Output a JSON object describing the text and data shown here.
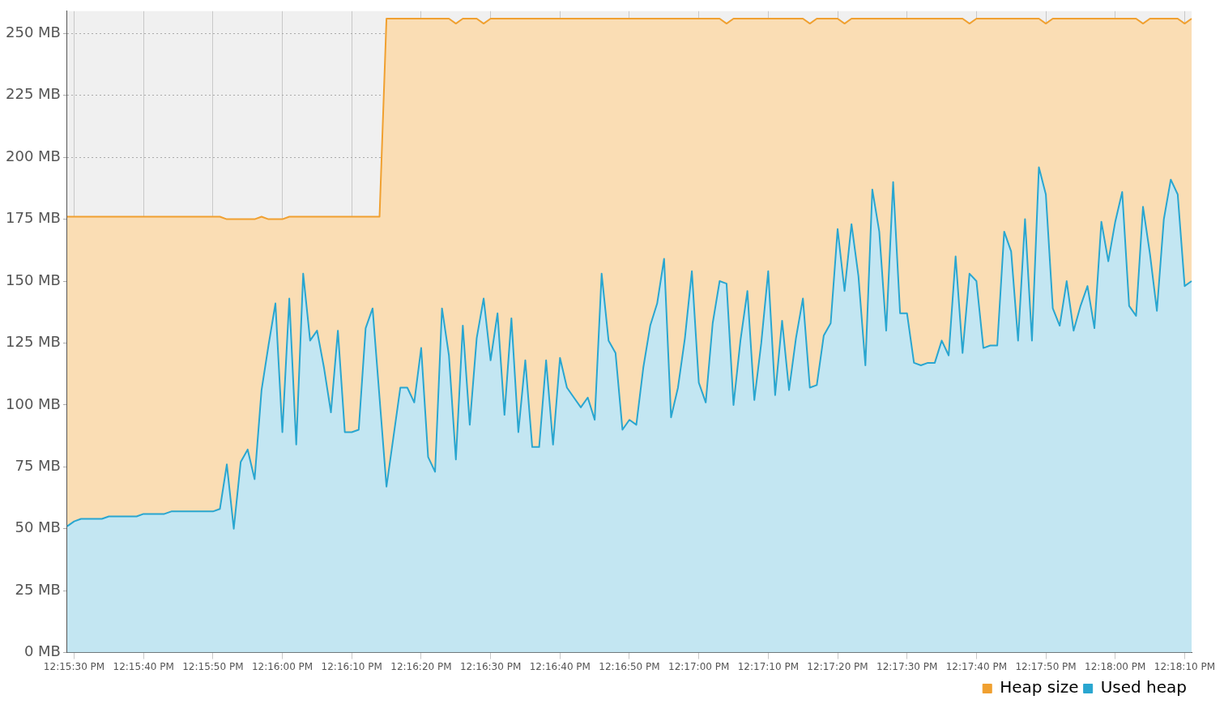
{
  "chart_data": {
    "type": "area",
    "categories": [
      null,
      "12:15:30 PM",
      null,
      null,
      null,
      null,
      null,
      null,
      null,
      null,
      null,
      "12:15:40 PM",
      null,
      null,
      null,
      null,
      null,
      null,
      null,
      null,
      null,
      "12:15:50 PM",
      null,
      null,
      null,
      null,
      null,
      null,
      null,
      null,
      null,
      "12:16:00 PM",
      null,
      null,
      null,
      null,
      null,
      null,
      null,
      null,
      null,
      "12:16:10 PM",
      null,
      null,
      null,
      null,
      null,
      null,
      null,
      null,
      null,
      "12:16:20 PM",
      null,
      null,
      null,
      null,
      null,
      null,
      null,
      null,
      null,
      "12:16:30 PM",
      null,
      null,
      null,
      null,
      null,
      null,
      null,
      null,
      null,
      "12:16:40 PM",
      null,
      null,
      null,
      null,
      null,
      null,
      null,
      null,
      null,
      "12:16:50 PM",
      null,
      null,
      null,
      null,
      null,
      null,
      null,
      null,
      null,
      "12:17:00 PM",
      null,
      null,
      null,
      null,
      null,
      null,
      null,
      null,
      null,
      "12:17:10 PM",
      null,
      null,
      null,
      null,
      null,
      null,
      null,
      null,
      null,
      "12:17:20 PM",
      null,
      null,
      null,
      null,
      null,
      null,
      null,
      null,
      null,
      "12:17:30 PM",
      null,
      null,
      null,
      null,
      null,
      null,
      null,
      null,
      null,
      "12:17:40 PM",
      null,
      null,
      null,
      null,
      null,
      null,
      null,
      null,
      null,
      "12:17:50 PM",
      null,
      null,
      null,
      null,
      null,
      null,
      null,
      null,
      null,
      "12:18:00 PM",
      null,
      null,
      null,
      null,
      null,
      null,
      null,
      null,
      null,
      "12:18:10 PM",
      null
    ],
    "series": [
      {
        "name": "Heap size",
        "color": "#f0a030",
        "values": [
          176,
          176,
          176,
          176,
          176,
          176,
          176,
          176,
          176,
          176,
          176,
          176,
          176,
          176,
          176,
          176,
          176,
          176,
          176,
          176,
          176,
          176,
          176,
          175,
          175,
          175,
          175,
          175,
          176,
          175,
          175,
          175,
          176,
          176,
          176,
          176,
          176,
          176,
          176,
          176,
          176,
          176,
          176,
          176,
          176,
          176,
          256,
          256,
          256,
          256,
          256,
          256,
          256,
          256,
          256,
          256,
          254,
          256,
          256,
          256,
          254,
          256,
          256,
          256,
          256,
          256,
          256,
          256,
          256,
          256,
          256,
          256,
          256,
          256,
          256,
          256,
          256,
          256,
          256,
          256,
          256,
          256,
          256,
          256,
          256,
          256,
          256,
          256,
          256,
          256,
          256,
          256,
          256,
          256,
          256,
          254,
          256,
          256,
          256,
          256,
          256,
          256,
          256,
          256,
          256,
          256,
          256,
          254,
          256,
          256,
          256,
          256,
          254,
          256,
          256,
          256,
          256,
          256,
          256,
          256,
          256,
          256,
          256,
          256,
          256,
          256,
          256,
          256,
          256,
          256,
          254,
          256,
          256,
          256,
          256,
          256,
          256,
          256,
          256,
          256,
          256,
          254,
          256,
          256,
          256,
          256,
          256,
          256,
          256,
          256,
          256,
          256,
          256,
          256,
          256,
          254,
          256,
          256,
          256,
          256,
          256,
          254,
          256
        ]
      },
      {
        "name": "Used heap",
        "type": "area",
        "color": "#29a6d0",
        "values": [
          51,
          53,
          54,
          54,
          54,
          54,
          55,
          55,
          55,
          55,
          55,
          56,
          56,
          56,
          56,
          57,
          57,
          57,
          57,
          57,
          57,
          57,
          58,
          76,
          50,
          77,
          82,
          70,
          106,
          124,
          141,
          89,
          143,
          84,
          153,
          126,
          130,
          115,
          97,
          130,
          89,
          89,
          90,
          131,
          139,
          103,
          67,
          87,
          107,
          107,
          101,
          123,
          79,
          73,
          139,
          120,
          78,
          132,
          92,
          127,
          143,
          118,
          137,
          96,
          135,
          89,
          118,
          83,
          83,
          118,
          84,
          119,
          107,
          103,
          99,
          103,
          94,
          153,
          126,
          121,
          90,
          94,
          92,
          115,
          132,
          141,
          159,
          95,
          107,
          127,
          154,
          109,
          101,
          133,
          150,
          149,
          100,
          126,
          146,
          102,
          125,
          154,
          104,
          134,
          106,
          127,
          143,
          107,
          108,
          128,
          133,
          171,
          146,
          173,
          152,
          116,
          187,
          170,
          130,
          190,
          137,
          137,
          117,
          116,
          117,
          117,
          126,
          120,
          160,
          121,
          153,
          150,
          123,
          124,
          124,
          170,
          162,
          126,
          175,
          126,
          196,
          185,
          139,
          132,
          150,
          130,
          140,
          148,
          131,
          174,
          158,
          174,
          186,
          140,
          136,
          180,
          161,
          138,
          175,
          191,
          185,
          148,
          150
        ]
      }
    ],
    "ylim": [
      0,
      259
    ],
    "yticks": [
      {
        "value": 0,
        "label": "0 MB"
      },
      {
        "value": 25,
        "label": "25 MB"
      },
      {
        "value": 50,
        "label": "50 MB"
      },
      {
        "value": 75,
        "label": "75 MB"
      },
      {
        "value": 100,
        "label": "100 MB"
      },
      {
        "value": 125,
        "label": "125 MB"
      },
      {
        "value": 150,
        "label": "150 MB"
      },
      {
        "value": 175,
        "label": "175 MB"
      },
      {
        "value": 200,
        "label": "200 MB"
      },
      {
        "value": 225,
        "label": "225 MB"
      },
      {
        "value": 250,
        "label": "250 MB"
      }
    ],
    "grid": true,
    "legend": "bottom right"
  }
}
